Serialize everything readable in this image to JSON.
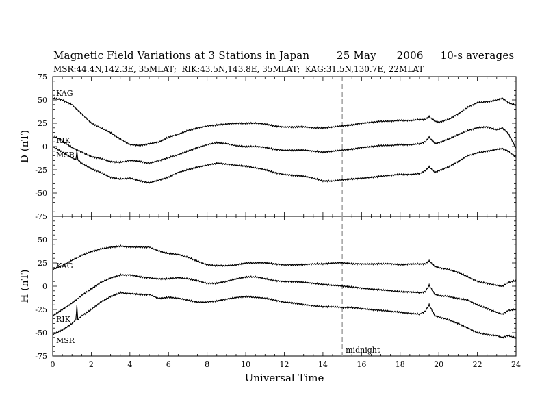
{
  "title": {
    "main": "Magnetic Field Variations at 3 Stations in Japan",
    "date": "25 May",
    "year": "2006",
    "averaging": "10-s averages"
  },
  "subtitle": "MSR:44.4N,142.3E, 35MLAT;  RIK:43.5N,143.8E, 35MLAT;  KAG:31.5N,130.7E, 22MLAT",
  "annotations": {
    "midnight": "midnight"
  },
  "colors": {
    "trace": "#000000",
    "midnight_line": "#a0a0a0"
  },
  "chart_data": [
    {
      "type": "line",
      "panel": "top",
      "ylabel": "D (nT)",
      "xlabel": "",
      "xlim": [
        0,
        24
      ],
      "ylim": [
        -75,
        75
      ],
      "yticks": [
        75,
        50,
        25,
        0,
        -25,
        -50,
        -75
      ],
      "xticks": [],
      "midnight_ut": 15,
      "series": [
        {
          "name": "KAG",
          "x": [
            0,
            0.5,
            1,
            1.5,
            2,
            2.5,
            3,
            3.5,
            4,
            4.5,
            5,
            5.5,
            6,
            6.5,
            7,
            7.5,
            8,
            8.5,
            9,
            9.5,
            10,
            10.5,
            11,
            11.5,
            12,
            12.5,
            13,
            13.5,
            14,
            14.5,
            15,
            15.5,
            16,
            16.5,
            17,
            17.5,
            18,
            18.5,
            19,
            19.3,
            19.5,
            19.8,
            20,
            20.5,
            21,
            21.5,
            22,
            22.5,
            23,
            23.3,
            23.6,
            24
          ],
          "y": [
            52,
            50,
            45,
            35,
            25,
            20,
            15,
            8,
            2,
            1,
            3,
            5,
            10,
            13,
            17,
            20,
            22,
            23,
            24,
            25,
            25,
            25,
            24,
            22,
            21,
            21,
            21,
            20,
            20,
            21,
            22,
            23,
            25,
            26,
            27,
            27,
            28,
            28,
            29,
            29,
            32,
            27,
            26,
            29,
            35,
            42,
            47,
            48,
            50,
            52,
            47,
            44
          ]
        },
        {
          "name": "RIK",
          "x": [
            0,
            0.5,
            1,
            1.5,
            2,
            2.5,
            3,
            3.5,
            4,
            4.5,
            5,
            5.5,
            6,
            6.5,
            7,
            7.5,
            8,
            8.5,
            9,
            9.5,
            10,
            10.5,
            11,
            11.5,
            12,
            12.5,
            13,
            13.5,
            14,
            14.5,
            15,
            15.5,
            16,
            16.5,
            17,
            17.5,
            18,
            18.5,
            19,
            19.3,
            19.5,
            19.8,
            20,
            20.5,
            21,
            21.5,
            22,
            22.5,
            23,
            23.3,
            23.6,
            24
          ],
          "y": [
            12,
            6,
            -1,
            -6,
            -11,
            -13,
            -16,
            -17,
            -15,
            -16,
            -18,
            -15,
            -12,
            -9,
            -5,
            -1,
            2,
            4,
            3,
            1,
            0,
            0,
            -1,
            -3,
            -4,
            -4,
            -4,
            -5,
            -6,
            -5,
            -4,
            -3,
            -1,
            0,
            1,
            1,
            2,
            2,
            3,
            5,
            10,
            3,
            4,
            8,
            13,
            17,
            20,
            21,
            18,
            20,
            14,
            -2
          ]
        },
        {
          "name": "MSR",
          "x": [
            0,
            0.5,
            1,
            1.2,
            1.25,
            1.3,
            1.5,
            2,
            2.5,
            3,
            3.5,
            4,
            4.5,
            5,
            5.5,
            6,
            6.5,
            7,
            7.5,
            8,
            8.5,
            9,
            9.5,
            10,
            10.5,
            11,
            11.5,
            12,
            12.5,
            13,
            13.5,
            14,
            14.5,
            15,
            15.5,
            16,
            16.5,
            17,
            17.5,
            18,
            18.5,
            19,
            19.3,
            19.5,
            19.8,
            20,
            20.5,
            21,
            21.5,
            22,
            22.5,
            23,
            23.3,
            23.6,
            24
          ],
          "y": [
            0,
            -6,
            -12,
            -14,
            -5,
            -14,
            -18,
            -24,
            -28,
            -33,
            -35,
            -34,
            -37,
            -39,
            -36,
            -33,
            -28,
            -25,
            -22,
            -20,
            -18,
            -19,
            -20,
            -21,
            -23,
            -25,
            -28,
            -30,
            -31,
            -32,
            -34,
            -37,
            -37,
            -36,
            -35,
            -34,
            -33,
            -32,
            -31,
            -30,
            -30,
            -29,
            -26,
            -22,
            -28,
            -26,
            -22,
            -16,
            -10,
            -7,
            -5,
            -3,
            -2,
            -5,
            -12
          ]
        }
      ]
    },
    {
      "type": "line",
      "panel": "bottom",
      "ylabel": "H (nT)",
      "xlabel": "Universal Time",
      "xlim": [
        0,
        24
      ],
      "ylim": [
        -75,
        75
      ],
      "yticks": [
        50,
        25,
        0,
        -25,
        -50,
        -75
      ],
      "xticks": [
        0,
        2,
        4,
        6,
        8,
        10,
        12,
        14,
        16,
        18,
        20,
        22,
        24
      ],
      "midnight_ut": 15,
      "series": [
        {
          "name": "KAG",
          "x": [
            0,
            0.5,
            1,
            1.5,
            2,
            2.5,
            3,
            3.5,
            4,
            4.5,
            5,
            5.5,
            6,
            6.5,
            7,
            7.5,
            8,
            8.5,
            9,
            9.5,
            10,
            10.5,
            11,
            11.5,
            12,
            12.5,
            13,
            13.5,
            14,
            14.5,
            15,
            15.5,
            16,
            16.5,
            17,
            17.5,
            18,
            18.5,
            19,
            19.3,
            19.5,
            19.8,
            20,
            20.5,
            21,
            21.5,
            22,
            22.5,
            23,
            23.3,
            23.6,
            24
          ],
          "y": [
            18,
            22,
            28,
            33,
            37,
            40,
            42,
            43,
            42,
            42,
            42,
            38,
            35,
            34,
            31,
            27,
            23,
            22,
            22,
            23,
            25,
            25,
            25,
            24,
            23,
            23,
            23,
            24,
            24,
            25,
            25,
            24,
            24,
            24,
            24,
            24,
            23,
            24,
            24,
            24,
            27,
            21,
            20,
            18,
            15,
            10,
            5,
            3,
            1,
            0,
            4,
            6
          ]
        },
        {
          "name": "RIK",
          "x": [
            0,
            0.5,
            1,
            1.5,
            2,
            2.5,
            3,
            3.5,
            4,
            4.5,
            5,
            5.5,
            6,
            6.5,
            7,
            7.5,
            8,
            8.5,
            9,
            9.5,
            10,
            10.5,
            11,
            11.5,
            12,
            12.5,
            13,
            13.5,
            14,
            14.5,
            15,
            15.5,
            16,
            16.5,
            17,
            17.5,
            18,
            18.5,
            19,
            19.3,
            19.5,
            19.8,
            20,
            20.5,
            21,
            21.5,
            22,
            22.5,
            23,
            23.3,
            23.6,
            24
          ],
          "y": [
            -32,
            -25,
            -18,
            -10,
            -3,
            4,
            9,
            12,
            12,
            10,
            9,
            8,
            8,
            9,
            8,
            6,
            3,
            3,
            5,
            8,
            10,
            10,
            8,
            6,
            5,
            5,
            4,
            3,
            2,
            1,
            0,
            -1,
            -2,
            -3,
            -4,
            -5,
            -6,
            -6,
            -7,
            -6,
            1,
            -9,
            -10,
            -11,
            -13,
            -15,
            -20,
            -24,
            -28,
            -30,
            -26,
            -25
          ]
        },
        {
          "name": "MSR",
          "x": [
            0,
            0.5,
            1,
            1.2,
            1.25,
            1.3,
            1.5,
            2,
            2.5,
            3,
            3.5,
            4,
            4.5,
            5,
            5.5,
            6,
            6.5,
            7,
            7.5,
            8,
            8.5,
            9,
            9.5,
            10,
            10.5,
            11,
            11.5,
            12,
            12.5,
            13,
            13.5,
            14,
            14.5,
            15,
            15.5,
            16,
            16.5,
            17,
            17.5,
            18,
            18.5,
            19,
            19.3,
            19.5,
            19.8,
            20,
            20.5,
            21,
            21.5,
            22,
            22.5,
            23,
            23.3,
            23.6,
            24
          ],
          "y": [
            -52,
            -47,
            -40,
            -36,
            -21,
            -36,
            -32,
            -25,
            -17,
            -11,
            -7,
            -8,
            -9,
            -9,
            -13,
            -12,
            -13,
            -15,
            -17,
            -17,
            -16,
            -14,
            -12,
            -11,
            -12,
            -13,
            -15,
            -17,
            -18,
            -20,
            -21,
            -22,
            -22,
            -23,
            -23,
            -24,
            -25,
            -26,
            -27,
            -28,
            -29,
            -30,
            -27,
            -20,
            -32,
            -33,
            -36,
            -40,
            -45,
            -50,
            -52,
            -53,
            -55,
            -53,
            -56
          ]
        }
      ]
    }
  ]
}
